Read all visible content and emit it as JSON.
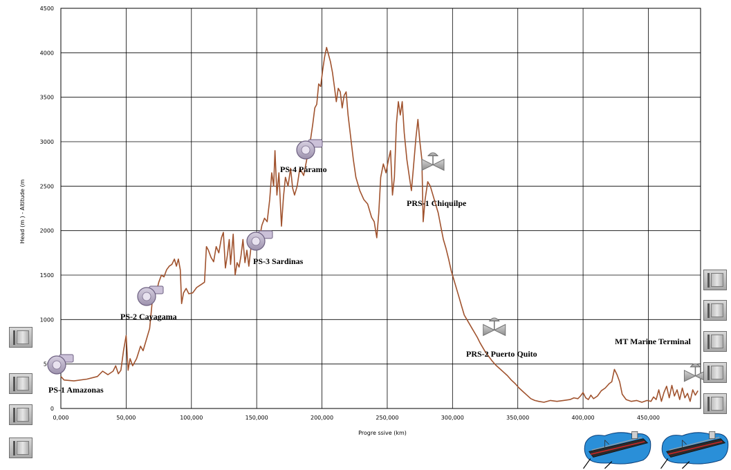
{
  "chart_data": {
    "type": "line",
    "title": "",
    "xlabel": "Progre ssive (km)",
    "ylabel": "Head (m ) - Altitude (m",
    "xlim": [
      0,
      490000
    ],
    "ylim": [
      0,
      4500
    ],
    "x_ticks": [
      0,
      50000,
      100000,
      150000,
      200000,
      250000,
      300000,
      350000,
      400000,
      450000
    ],
    "x_tick_labels": [
      "0,000",
      "50,000",
      "100,000",
      "150,000",
      "200,000",
      "250,000",
      "300,000",
      "350,000",
      "400,000",
      "450,000"
    ],
    "y_ticks": [
      0,
      500,
      1000,
      1500,
      2000,
      2500,
      3000,
      3500,
      4000,
      4500
    ],
    "y_tick_labels": [
      "0",
      "500",
      "1000",
      "1500",
      "2000",
      "2500",
      "3000",
      "3500",
      "4000",
      "4500"
    ],
    "grid": true,
    "legend": "none",
    "series": [
      {
        "color": "#a0522d",
        "points": [
          [
            0,
            360
          ],
          [
            2500,
            320
          ],
          [
            10000,
            310
          ],
          [
            20000,
            330
          ],
          [
            28000,
            360
          ],
          [
            32000,
            420
          ],
          [
            36000,
            380
          ],
          [
            40000,
            420
          ],
          [
            42000,
            480
          ],
          [
            44000,
            390
          ],
          [
            46000,
            430
          ],
          [
            48000,
            650
          ],
          [
            50000,
            820
          ],
          [
            51500,
            430
          ],
          [
            53000,
            560
          ],
          [
            55000,
            480
          ],
          [
            58000,
            560
          ],
          [
            61000,
            700
          ],
          [
            63000,
            650
          ],
          [
            66000,
            800
          ],
          [
            68000,
            900
          ],
          [
            70000,
            1200
          ],
          [
            71500,
            1350
          ],
          [
            73000,
            1300
          ],
          [
            75000,
            1420
          ],
          [
            77000,
            1500
          ],
          [
            79000,
            1480
          ],
          [
            81000,
            1560
          ],
          [
            83000,
            1600
          ],
          [
            85000,
            1620
          ],
          [
            87000,
            1680
          ],
          [
            88500,
            1600
          ],
          [
            90000,
            1680
          ],
          [
            91500,
            1560
          ],
          [
            92500,
            1180
          ],
          [
            94000,
            1300
          ],
          [
            96000,
            1350
          ],
          [
            98000,
            1290
          ],
          [
            101000,
            1300
          ],
          [
            104000,
            1360
          ],
          [
            108000,
            1400
          ],
          [
            110000,
            1420
          ],
          [
            111500,
            1820
          ],
          [
            113000,
            1780
          ],
          [
            115000,
            1700
          ],
          [
            117000,
            1650
          ],
          [
            119000,
            1820
          ],
          [
            121000,
            1750
          ],
          [
            123000,
            1920
          ],
          [
            124500,
            1980
          ],
          [
            126000,
            1580
          ],
          [
            127500,
            1720
          ],
          [
            129000,
            1900
          ],
          [
            130000,
            1620
          ],
          [
            132000,
            1960
          ],
          [
            133500,
            1500
          ],
          [
            135000,
            1640
          ],
          [
            136500,
            1590
          ],
          [
            138000,
            1720
          ],
          [
            139500,
            1900
          ],
          [
            141000,
            1640
          ],
          [
            142500,
            1780
          ],
          [
            144000,
            1600
          ],
          [
            146000,
            1860
          ],
          [
            148000,
            1960
          ],
          [
            150000,
            1870
          ],
          [
            152000,
            1900
          ],
          [
            154000,
            2060
          ],
          [
            156000,
            2140
          ],
          [
            158000,
            2100
          ],
          [
            160000,
            2350
          ],
          [
            161500,
            2650
          ],
          [
            163000,
            2500
          ],
          [
            164000,
            2900
          ],
          [
            165500,
            2400
          ],
          [
            167000,
            2650
          ],
          [
            169000,
            2050
          ],
          [
            170500,
            2380
          ],
          [
            172000,
            2600
          ],
          [
            174000,
            2500
          ],
          [
            176000,
            2700
          ],
          [
            177500,
            2480
          ],
          [
            179000,
            2400
          ],
          [
            181000,
            2500
          ],
          [
            183000,
            2700
          ],
          [
            186000,
            2620
          ],
          [
            189000,
            2850
          ],
          [
            191000,
            3000
          ],
          [
            193000,
            3200
          ],
          [
            194500,
            3380
          ],
          [
            196000,
            3420
          ],
          [
            197500,
            3650
          ],
          [
            199000,
            3620
          ],
          [
            200500,
            3800
          ],
          [
            202000,
            3950
          ],
          [
            203500,
            4060
          ],
          [
            205000,
            3980
          ],
          [
            206500,
            3900
          ],
          [
            208000,
            3780
          ],
          [
            209500,
            3620
          ],
          [
            211000,
            3450
          ],
          [
            212500,
            3600
          ],
          [
            214000,
            3560
          ],
          [
            215500,
            3380
          ],
          [
            217000,
            3520
          ],
          [
            218500,
            3560
          ],
          [
            220000,
            3300
          ],
          [
            222000,
            3050
          ],
          [
            224000,
            2800
          ],
          [
            226000,
            2600
          ],
          [
            229000,
            2450
          ],
          [
            232000,
            2350
          ],
          [
            235000,
            2300
          ],
          [
            238000,
            2150
          ],
          [
            240000,
            2100
          ],
          [
            242000,
            1920
          ],
          [
            243500,
            2200
          ],
          [
            245000,
            2600
          ],
          [
            247000,
            2750
          ],
          [
            249000,
            2650
          ],
          [
            251000,
            2800
          ],
          [
            252500,
            2900
          ],
          [
            254000,
            2400
          ],
          [
            255500,
            2600
          ],
          [
            257000,
            3200
          ],
          [
            258500,
            3450
          ],
          [
            260000,
            3300
          ],
          [
            261500,
            3450
          ],
          [
            263000,
            3100
          ],
          [
            265000,
            2800
          ],
          [
            267000,
            2600
          ],
          [
            268500,
            2450
          ],
          [
            270000,
            2700
          ],
          [
            272000,
            3050
          ],
          [
            273500,
            3250
          ],
          [
            275000,
            3000
          ],
          [
            276500,
            2800
          ],
          [
            277500,
            2100
          ],
          [
            279000,
            2350
          ],
          [
            281000,
            2550
          ],
          [
            283000,
            2500
          ],
          [
            285000,
            2400
          ],
          [
            287000,
            2300
          ],
          [
            289000,
            2200
          ],
          [
            291000,
            2050
          ],
          [
            293000,
            1900
          ],
          [
            295000,
            1800
          ],
          [
            297000,
            1680
          ],
          [
            299000,
            1550
          ],
          [
            301000,
            1450
          ],
          [
            303000,
            1350
          ],
          [
            305000,
            1250
          ],
          [
            307000,
            1150
          ],
          [
            309000,
            1050
          ],
          [
            311000,
            1000
          ],
          [
            313000,
            950
          ],
          [
            315000,
            900
          ],
          [
            317000,
            850
          ],
          [
            319000,
            800
          ],
          [
            321000,
            740
          ],
          [
            323000,
            690
          ],
          [
            325000,
            640
          ],
          [
            327000,
            600
          ],
          [
            330000,
            540
          ],
          [
            333000,
            490
          ],
          [
            336000,
            450
          ],
          [
            339000,
            410
          ],
          [
            342000,
            370
          ],
          [
            345000,
            320
          ],
          [
            348000,
            280
          ],
          [
            351000,
            230
          ],
          [
            354000,
            190
          ],
          [
            357000,
            150
          ],
          [
            360000,
            110
          ],
          [
            363000,
            90
          ],
          [
            366000,
            80
          ],
          [
            370000,
            70
          ],
          [
            375000,
            90
          ],
          [
            380000,
            80
          ],
          [
            385000,
            90
          ],
          [
            390000,
            100
          ],
          [
            393000,
            120
          ],
          [
            396000,
            110
          ],
          [
            398000,
            140
          ],
          [
            400000,
            180
          ],
          [
            402000,
            120
          ],
          [
            404000,
            100
          ],
          [
            406000,
            150
          ],
          [
            408000,
            110
          ],
          [
            411000,
            140
          ],
          [
            414000,
            200
          ],
          [
            417000,
            230
          ],
          [
            420000,
            280
          ],
          [
            422000,
            300
          ],
          [
            424000,
            440
          ],
          [
            426000,
            380
          ],
          [
            428000,
            300
          ],
          [
            430000,
            160
          ],
          [
            433000,
            100
          ],
          [
            437000,
            80
          ],
          [
            441000,
            90
          ],
          [
            445000,
            70
          ],
          [
            449000,
            90
          ],
          [
            452000,
            80
          ],
          [
            454000,
            130
          ],
          [
            456000,
            100
          ],
          [
            458000,
            210
          ],
          [
            460000,
            80
          ],
          [
            462000,
            180
          ],
          [
            464000,
            250
          ],
          [
            466000,
            120
          ],
          [
            468000,
            260
          ],
          [
            470000,
            140
          ],
          [
            472000,
            210
          ],
          [
            474000,
            100
          ],
          [
            476000,
            230
          ],
          [
            478000,
            120
          ],
          [
            480000,
            170
          ],
          [
            482000,
            80
          ],
          [
            484000,
            210
          ],
          [
            486000,
            150
          ],
          [
            488000,
            200
          ]
        ]
      }
    ],
    "annotations": [
      {
        "label": "PS-1 Amazonas",
        "icon": "pump-icon",
        "x": 0,
        "y": 300
      },
      {
        "label": "PS-2 Cayagama",
        "icon": "pump-icon",
        "x": 66000,
        "y": 1300
      },
      {
        "label": "PS-3 Sardinas",
        "icon": "pump-icon",
        "x": 149000,
        "y": 1870
      },
      {
        "label": "PS-4 Páramo",
        "icon": "pump-icon",
        "x": 190000,
        "y": 2900
      },
      {
        "label": "PRS-1 Chiquilpe",
        "icon": "valve-icon",
        "x": 285000,
        "y": 2600
      },
      {
        "label": "PRS-2 Puerto Quito",
        "icon": "valve-icon",
        "x": 332000,
        "y": 820
      },
      {
        "label": "MT Marine Terminal",
        "icon": "valve-icon",
        "x": 486000,
        "y": 320
      }
    ],
    "decorations": {
      "tank_icons": 9,
      "tanker_icons": 2,
      "line_color": "#a0522d",
      "pump_color": "#b8aec4",
      "tanker_water_color": "#2a8fd8"
    }
  }
}
